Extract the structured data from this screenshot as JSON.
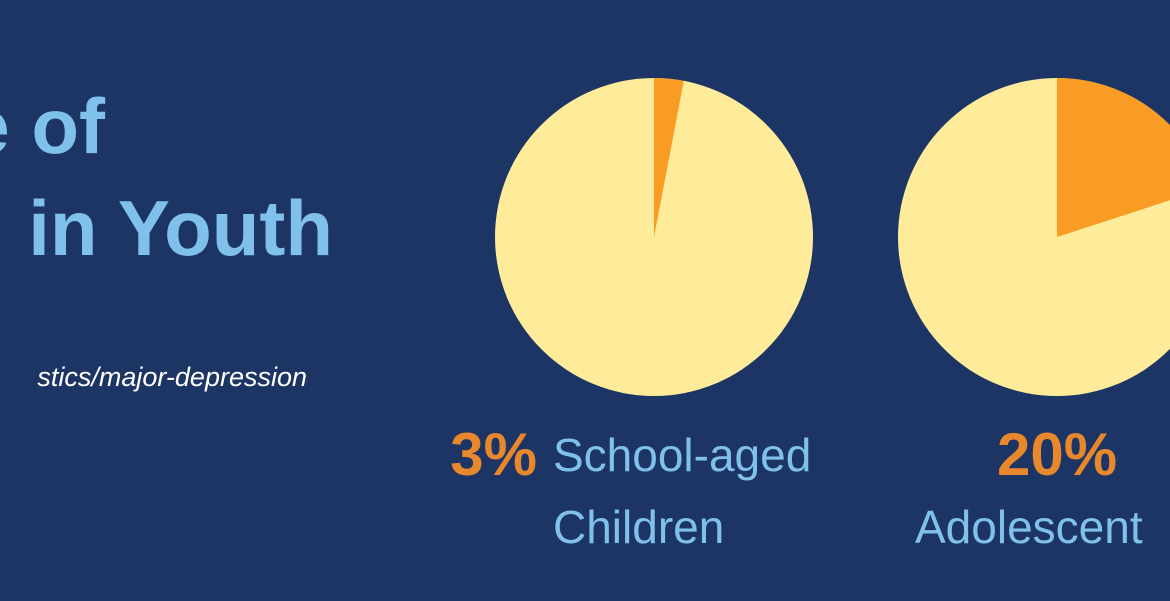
{
  "title_lines": [
    "e of",
    "in Youth"
  ],
  "source": "stics/major-depression",
  "chart_data": [
    {
      "type": "pie",
      "categories": [
        [
          "School-aged",
          "Children"
        ]
      ],
      "values": [
        3
      ],
      "value_labels": [
        "3%"
      ],
      "color": "#f89c23",
      "rest_color": "#feec9b"
    },
    {
      "type": "pie",
      "categories": [
        [
          "Adolescent"
        ]
      ],
      "values": [
        20
      ],
      "value_labels": [
        "20%"
      ],
      "color": "#f89c23",
      "rest_color": "#feec9b"
    }
  ]
}
